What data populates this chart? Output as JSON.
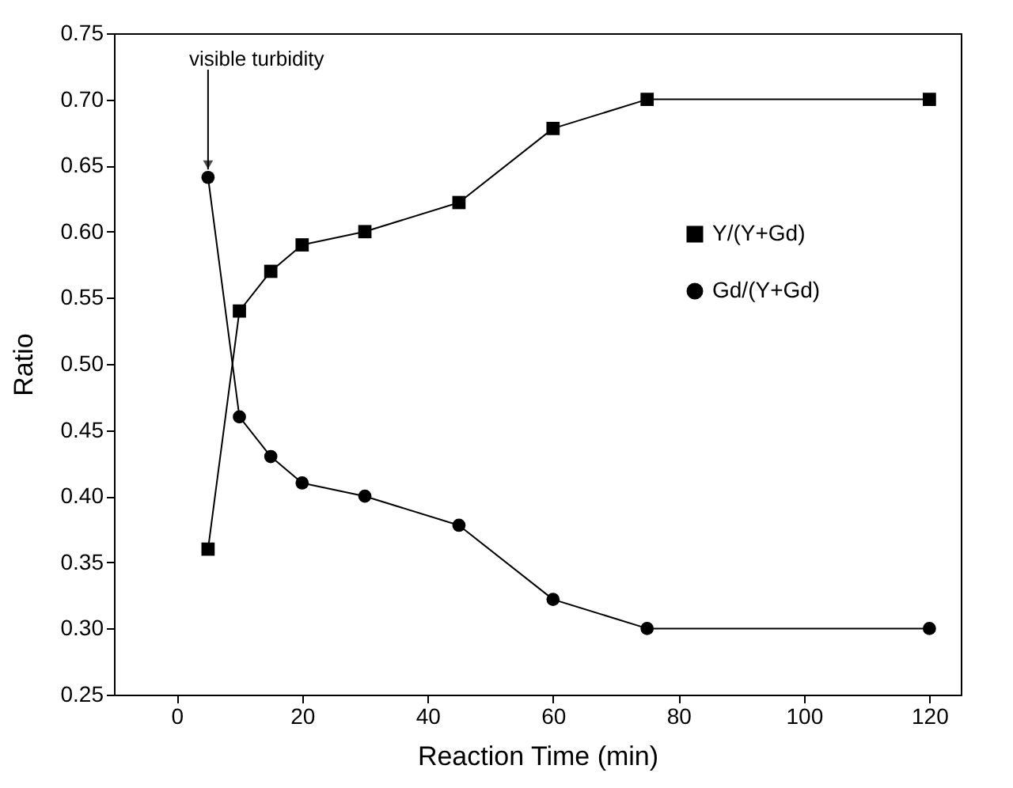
{
  "chart_data": {
    "type": "line",
    "xlabel": "Reaction Time (min)",
    "ylabel": "Ratio",
    "xlim": [
      -10,
      125
    ],
    "xticks": [
      0,
      20,
      40,
      60,
      80,
      100,
      120
    ],
    "ylim": [
      0.25,
      0.75
    ],
    "yticks": [
      0.25,
      {
        "value": 0.3,
        "label": "0.30"
      },
      0.35,
      {
        "value": 0.4,
        "label": "0.40"
      },
      0.45,
      {
        "value": 0.5,
        "label": "0.50"
      },
      0.55,
      {
        "value": 0.6,
        "label": "0.60"
      },
      0.65,
      {
        "value": 0.7,
        "label": "0.70"
      },
      0.75
    ],
    "x": [
      5,
      10,
      15,
      20,
      30,
      45,
      60,
      75,
      120
    ],
    "series": [
      {
        "name": "Y/(Y+Gd)",
        "color": "#000000",
        "marker": "square",
        "values": [
          0.36,
          0.54,
          0.57,
          0.59,
          0.6,
          0.622,
          0.678,
          0.7,
          0.7
        ]
      },
      {
        "name": "Gd/(Y+Gd)",
        "color": "#000000",
        "marker": "circle",
        "values": [
          0.641,
          0.46,
          0.43,
          0.41,
          0.4,
          0.378,
          0.322,
          0.3,
          0.3
        ]
      }
    ],
    "annotations": [
      {
        "text": "visible turbidity",
        "x": 5,
        "y": 0.641
      }
    ],
    "grid": false,
    "legend": "right",
    "line_style": "solid"
  }
}
